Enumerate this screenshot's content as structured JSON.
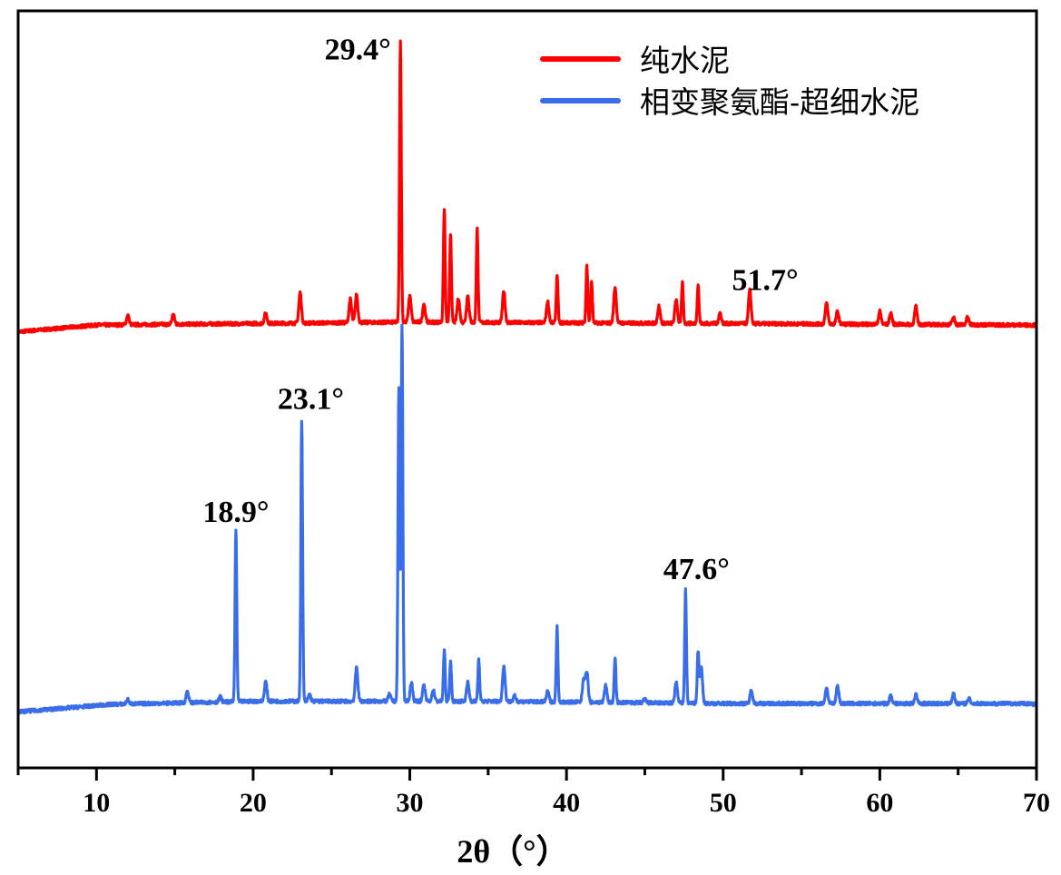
{
  "chart_data": {
    "type": "line",
    "title": "",
    "xlabel": "2θ（°）",
    "ylabel": "",
    "xlim": [
      5,
      70
    ],
    "ylim": [
      0,
      100
    ],
    "y_units": "intensity (a.u., offset stacked)",
    "x_ticks": [
      10,
      20,
      30,
      40,
      50,
      60,
      70
    ],
    "x_minor_ticks": [
      5,
      15,
      25,
      35,
      45,
      55,
      65
    ],
    "grid": false,
    "legend_position": "top-right",
    "series": [
      {
        "name": "纯水泥",
        "color": "#ff0000",
        "baseline": [
          [
            5,
            57.6
          ],
          [
            10,
            58.5
          ],
          [
            30,
            58.9
          ],
          [
            50,
            58.7
          ],
          [
            70,
            58.5
          ]
        ],
        "peaks": [
          [
            12.0,
            59.8
          ],
          [
            14.9,
            59.9
          ],
          [
            20.8,
            60.1
          ],
          [
            23.0,
            62.8
          ],
          [
            26.2,
            61.9
          ],
          [
            26.6,
            62.5
          ],
          [
            29.4,
            96.0
          ],
          [
            30.0,
            62.4
          ],
          [
            30.9,
            61.3
          ],
          [
            32.2,
            73.7
          ],
          [
            32.6,
            70.6
          ],
          [
            33.1,
            62.1
          ],
          [
            33.7,
            62.4
          ],
          [
            34.3,
            71.2
          ],
          [
            36.0,
            63.0
          ],
          [
            38.8,
            61.6
          ],
          [
            39.4,
            65.2
          ],
          [
            41.3,
            66.3
          ],
          [
            41.6,
            64.3
          ],
          [
            43.1,
            63.5
          ],
          [
            45.9,
            61.0
          ],
          [
            47.0,
            61.9
          ],
          [
            47.4,
            64.1
          ],
          [
            48.4,
            63.9
          ],
          [
            49.8,
            60.1
          ],
          [
            51.7,
            63.1
          ],
          [
            56.6,
            61.4
          ],
          [
            57.3,
            60.3
          ],
          [
            60.0,
            60.3
          ],
          [
            60.7,
            60.1
          ],
          [
            62.3,
            60.9
          ],
          [
            64.7,
            59.5
          ],
          [
            65.6,
            59.5
          ]
        ]
      },
      {
        "name": "相变聚氨酯-超细水泥",
        "color": "#3a6ee8",
        "baseline": [
          [
            5,
            7.4
          ],
          [
            11,
            8.4
          ],
          [
            20,
            8.8
          ],
          [
            35,
            8.8
          ],
          [
            50,
            8.5
          ],
          [
            70,
            8.5
          ]
        ],
        "peaks": [
          [
            12.0,
            9.0
          ],
          [
            15.8,
            10.1
          ],
          [
            17.9,
            9.4
          ],
          [
            18.9,
            31.3
          ],
          [
            20.8,
            11.4
          ],
          [
            23.1,
            46.0
          ],
          [
            23.6,
            9.7
          ],
          [
            26.6,
            13.3
          ],
          [
            28.7,
            9.7
          ],
          [
            29.3,
            50.1
          ],
          [
            29.5,
            58.3
          ],
          [
            30.1,
            11.3
          ],
          [
            30.9,
            10.9
          ],
          [
            31.5,
            10.3
          ],
          [
            32.2,
            15.5
          ],
          [
            32.6,
            14.1
          ],
          [
            33.7,
            11.3
          ],
          [
            34.4,
            14.3
          ],
          [
            36.0,
            13.5
          ],
          [
            36.7,
            9.5
          ],
          [
            38.8,
            10.1
          ],
          [
            39.4,
            18.6
          ],
          [
            41.1,
            11.8
          ],
          [
            41.3,
            12.7
          ],
          [
            42.5,
            10.9
          ],
          [
            43.1,
            14.5
          ],
          [
            45.0,
            9.1
          ],
          [
            47.0,
            11.3
          ],
          [
            47.6,
            23.5
          ],
          [
            48.4,
            15.3
          ],
          [
            48.6,
            13.3
          ],
          [
            51.8,
            10.3
          ],
          [
            56.6,
            10.6
          ],
          [
            57.3,
            10.9
          ],
          [
            60.7,
            9.6
          ],
          [
            62.3,
            9.7
          ],
          [
            64.7,
            9.8
          ],
          [
            65.7,
            9.1
          ],
          [
            69.8,
            8.4
          ]
        ]
      }
    ],
    "annotations": [
      {
        "text": "29.4°",
        "series": "纯水泥",
        "x": 29.4
      },
      {
        "text": "51.7°",
        "series": "纯水泥",
        "x": 51.7
      },
      {
        "text": "18.9°",
        "series": "相变聚氨酯-超细水泥",
        "x": 18.9
      },
      {
        "text": "23.1°",
        "series": "相变聚氨酯-超细水泥",
        "x": 23.1
      },
      {
        "text": "47.6°",
        "series": "相变聚氨酯-超细水泥",
        "x": 47.6
      }
    ]
  }
}
